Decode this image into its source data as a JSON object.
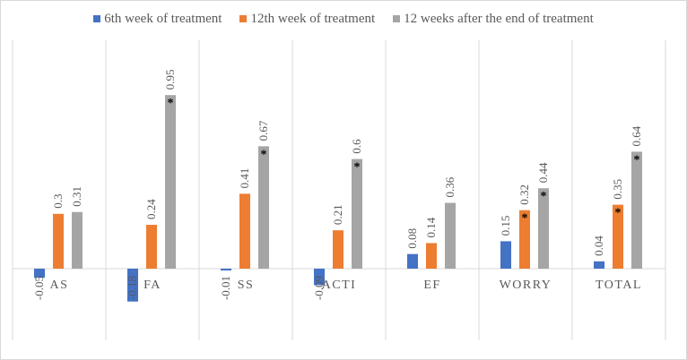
{
  "chart_data": {
    "type": "bar",
    "title": "",
    "xlabel": "",
    "ylabel": "",
    "categories": [
      "AS",
      "FA",
      "SS",
      "ACTI",
      "EF",
      "WORRY",
      "TOTAL"
    ],
    "series": [
      {
        "name": "6th week of treatment",
        "color": "#4472c4",
        "values": [
          -0.05,
          -0.18,
          -0.01,
          -0.09,
          0.08,
          0.15,
          0.04
        ],
        "significant": [
          false,
          false,
          false,
          false,
          false,
          false,
          false
        ]
      },
      {
        "name": "12th week of treatment",
        "color": "#ed7d31",
        "values": [
          0.3,
          0.24,
          0.41,
          0.21,
          0.14,
          0.32,
          0.35
        ],
        "significant": [
          false,
          false,
          false,
          false,
          false,
          true,
          true
        ]
      },
      {
        "name": "12 weeks after the end of treatment",
        "color": "#a5a5a5",
        "values": [
          0.31,
          0.95,
          0.67,
          0.6,
          0.36,
          0.44,
          0.64
        ],
        "significant": [
          false,
          true,
          true,
          true,
          false,
          true,
          true
        ]
      }
    ],
    "ylim": [
      -0.2,
      1.1
    ],
    "grid": "vertical category separators",
    "legend": "top-center",
    "significance_marker": "*"
  }
}
